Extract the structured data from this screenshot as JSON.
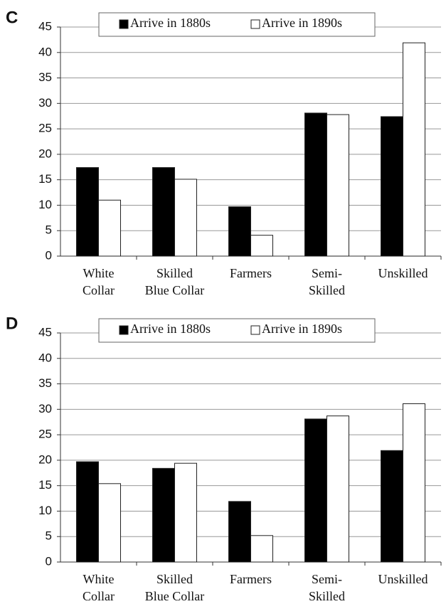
{
  "chart_data": [
    {
      "type": "bar",
      "title": "C",
      "categories": [
        [
          "White",
          "Collar"
        ],
        [
          "Skilled",
          "Blue Collar"
        ],
        [
          "Farmers"
        ],
        [
          "Semi-",
          "Skilled"
        ],
        [
          "Unskilled"
        ]
      ],
      "series": [
        {
          "name": "Arrive in 1880s",
          "color": "#000000",
          "values": [
            17.4,
            17.4,
            9.7,
            28.1,
            27.4
          ]
        },
        {
          "name": "Arrive in 1890s",
          "color": "#ffffff",
          "values": [
            11.0,
            15.1,
            4.1,
            27.8,
            41.9
          ]
        }
      ],
      "ylim": [
        0,
        45
      ],
      "yticks": [
        0,
        5,
        10,
        15,
        20,
        25,
        30,
        35,
        40,
        45
      ],
      "grid": true,
      "legend": "top"
    },
    {
      "type": "bar",
      "title": "D",
      "categories": [
        [
          "White",
          "Collar"
        ],
        [
          "Skilled",
          "Blue Collar"
        ],
        [
          "Farmers"
        ],
        [
          "Semi-",
          "Skilled"
        ],
        [
          "Unskilled"
        ]
      ],
      "series": [
        {
          "name": "Arrive in 1880s",
          "color": "#000000",
          "values": [
            19.7,
            18.4,
            11.9,
            28.1,
            21.9
          ]
        },
        {
          "name": "Arrive in 1890s",
          "color": "#ffffff",
          "values": [
            15.4,
            19.4,
            5.2,
            28.7,
            31.1
          ]
        }
      ],
      "ylim": [
        0,
        45
      ],
      "yticks": [
        0,
        5,
        10,
        15,
        20,
        25,
        30,
        35,
        40,
        45
      ],
      "grid": true,
      "legend": "top"
    }
  ]
}
